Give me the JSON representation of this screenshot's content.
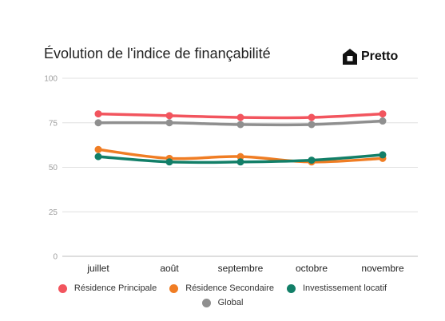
{
  "header": {
    "title": "Évolution de l'indice de finançabilité",
    "brand_name": "Pretto"
  },
  "chart_data": {
    "type": "line",
    "title": "Évolution de l'indice de finançabilité",
    "xlabel": "",
    "ylabel": "",
    "categories": [
      "juillet",
      "août",
      "septembre",
      "octobre",
      "novembre"
    ],
    "ylim": [
      0,
      100
    ],
    "yticks": [
      0,
      25,
      50,
      75,
      100
    ],
    "grid": true,
    "legend_position": "bottom",
    "series": [
      {
        "name": "Résidence Principale",
        "color": "#f2555e",
        "values": [
          80,
          79,
          78,
          78,
          80
        ]
      },
      {
        "name": "Résidence Secondaire",
        "color": "#f07d24",
        "values": [
          60,
          55,
          56,
          53,
          55
        ]
      },
      {
        "name": "Investissement locatif",
        "color": "#127f68",
        "values": [
          56,
          53,
          53,
          54,
          57
        ]
      },
      {
        "name": "Global",
        "color": "#8f8f8f",
        "values": [
          75,
          75,
          74,
          74,
          76
        ]
      }
    ]
  }
}
